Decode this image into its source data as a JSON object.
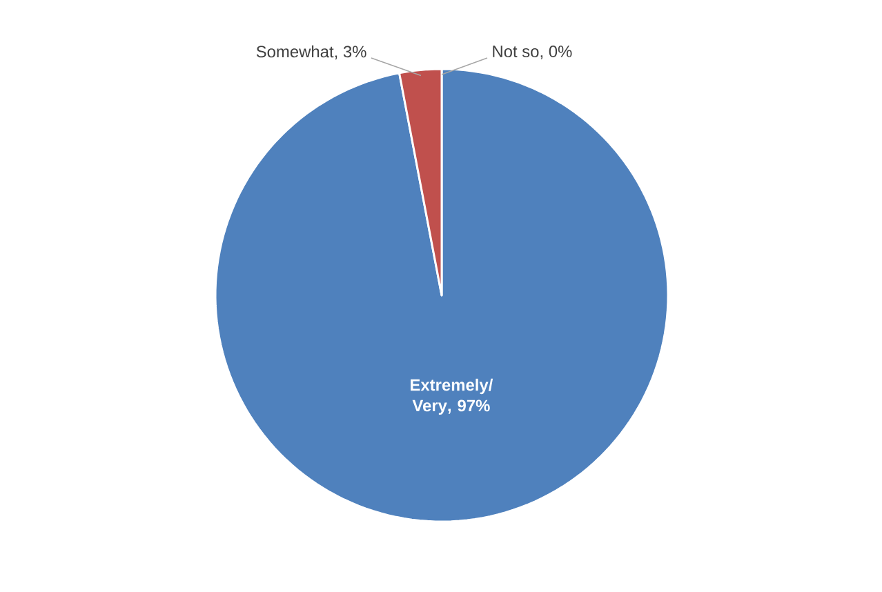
{
  "chart_data": {
    "type": "pie",
    "categories": [
      "Extremely/ Very",
      "Somewhat",
      "Not so"
    ],
    "values": [
      97,
      3,
      0
    ],
    "value_labels": [
      ", 97%",
      ", 3%",
      ", 0%"
    ],
    "colors": [
      "#4f81bd",
      "#c0504d",
      "#9bbb59"
    ],
    "legend": false
  }
}
